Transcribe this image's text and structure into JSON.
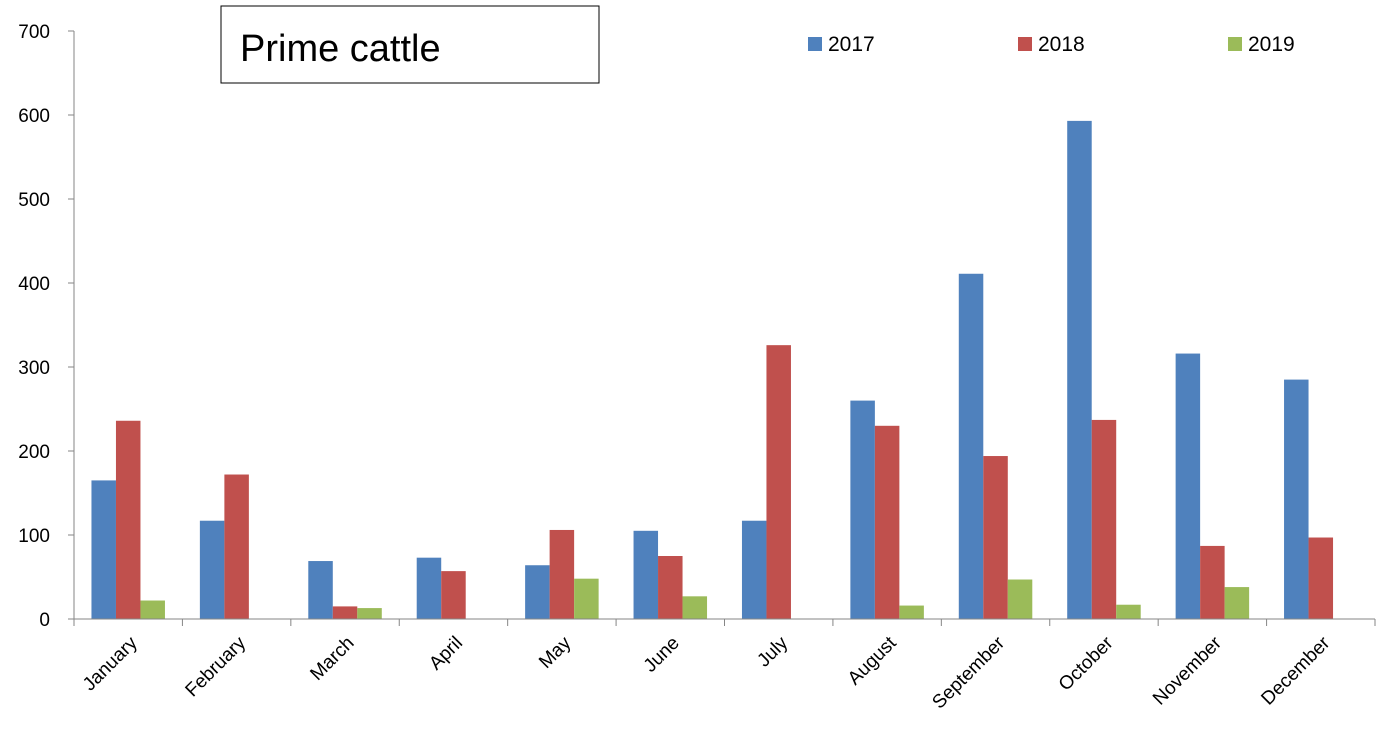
{
  "chart_data": {
    "type": "bar",
    "title": "Prime cattle",
    "xlabel": "",
    "ylabel": "",
    "ylim": [
      0,
      700
    ],
    "yticks": [
      "0",
      "100",
      "200",
      "300",
      "400",
      "500",
      "600",
      "700"
    ],
    "categories": [
      "January",
      "February",
      "March",
      "April",
      "May",
      "June",
      "July",
      "August",
      "September",
      "October",
      "November",
      "December"
    ],
    "series": [
      {
        "name": "2017",
        "color": "#4F81BD",
        "values": [
          165,
          117,
          69,
          73,
          64,
          105,
          117,
          260,
          411,
          593,
          316,
          285
        ]
      },
      {
        "name": "2018",
        "color": "#C0504D",
        "values": [
          236,
          172,
          15,
          57,
          106,
          75,
          326,
          230,
          194,
          237,
          87,
          97
        ]
      },
      {
        "name": "2019",
        "color": "#9BBB59",
        "values": [
          22,
          null,
          13,
          null,
          48,
          27,
          null,
          16,
          47,
          17,
          38,
          null
        ]
      }
    ],
    "grid": false,
    "legend_position": "top-right"
  }
}
